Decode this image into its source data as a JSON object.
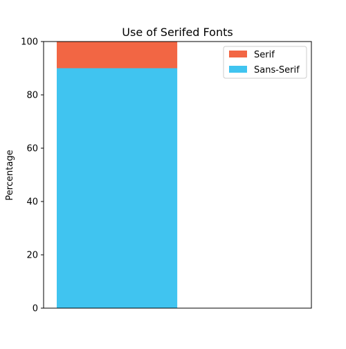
{
  "chart_data": {
    "type": "bar",
    "stacked": true,
    "title": "Use of Serifed Fonts",
    "xlabel": "",
    "ylabel": "Percentage",
    "ylim": [
      0,
      100
    ],
    "yticks": [
      0,
      20,
      40,
      60,
      80,
      100
    ],
    "categories": [
      ""
    ],
    "series": [
      {
        "name": "Sans-Serif",
        "values": [
          90
        ],
        "color": "#40c4f0"
      },
      {
        "name": "Serif",
        "values": [
          10
        ],
        "color": "#f26644"
      }
    ],
    "legend": {
      "placement": "top-right",
      "order": [
        "Serif",
        "Sans-Serif"
      ]
    },
    "grid": false
  }
}
